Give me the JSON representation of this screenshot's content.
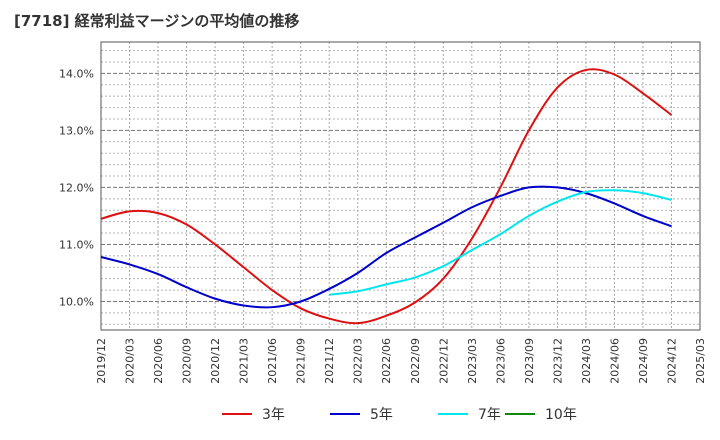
{
  "title": "[7718]  経常利益マージンの平均値の推移",
  "chart_data": {
    "type": "line",
    "title": "[7718]  経常利益マージンの平均値の推移",
    "xlabel": "",
    "ylabel": "",
    "x_ticks": [
      "2019/12",
      "2020/03",
      "2020/06",
      "2020/09",
      "2020/12",
      "2021/03",
      "2021/06",
      "2021/09",
      "2021/12",
      "2022/03",
      "2022/06",
      "2022/09",
      "2022/12",
      "2023/03",
      "2023/06",
      "2023/09",
      "2023/12",
      "2024/03",
      "2024/06",
      "2024/09",
      "2024/12",
      "2025/03"
    ],
    "y_ticks": [
      "10.0%",
      "11.0%",
      "12.0%",
      "13.0%",
      "14.0%"
    ],
    "ylim": [
      9.5,
      14.55
    ],
    "grid": true,
    "legend_position": "bottom",
    "series": [
      {
        "name": "3年",
        "color": "#dd1111",
        "start_index": 0,
        "values": [
          11.45,
          11.58,
          11.55,
          11.35,
          11.0,
          10.6,
          10.2,
          9.88,
          9.7,
          9.62,
          9.75,
          9.98,
          10.4,
          11.1,
          12.0,
          13.0,
          13.75,
          14.06,
          13.98,
          13.65,
          13.27
        ]
      },
      {
        "name": "5年",
        "color": "#0000cc",
        "start_index": 0,
        "values": [
          10.78,
          10.65,
          10.48,
          10.25,
          10.05,
          9.93,
          9.9,
          10.0,
          10.22,
          10.5,
          10.85,
          11.12,
          11.38,
          11.65,
          11.85,
          12.0,
          12.0,
          11.9,
          11.72,
          11.5,
          11.32
        ]
      },
      {
        "name": "7年",
        "color": "#00e5ee",
        "start_index": 8,
        "values": [
          10.12,
          10.18,
          10.3,
          10.42,
          10.62,
          10.9,
          11.18,
          11.5,
          11.75,
          11.92,
          11.95,
          11.9,
          11.78
        ]
      },
      {
        "name": "10年",
        "color": "#118811",
        "start_index": 0,
        "values": []
      }
    ]
  }
}
